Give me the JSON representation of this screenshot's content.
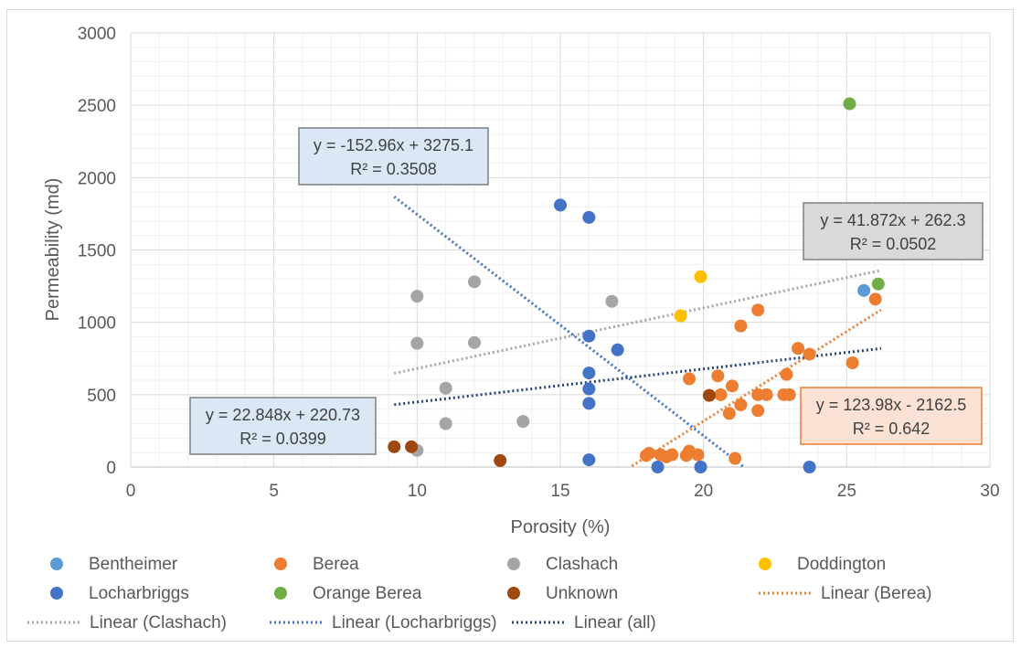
{
  "chart_data": {
    "type": "scatter",
    "title": "",
    "xlabel": "Porosity (%)",
    "ylabel": "Permeability (md)",
    "xlim": [
      0,
      30
    ],
    "ylim": [
      0,
      3000
    ],
    "xticks": [
      "0",
      "5",
      "10",
      "15",
      "20",
      "25",
      "30"
    ],
    "yticks": [
      "0",
      "500",
      "1000",
      "1500",
      "2000",
      "2500",
      "3000"
    ],
    "grid": true,
    "legend_position": "bottom",
    "series": [
      {
        "name": "Bentheimer",
        "color": "#5b9bd5",
        "points": [
          [
            25.6,
            1220
          ]
        ]
      },
      {
        "name": "Berea",
        "color": "#ed7d31",
        "points": [
          [
            18.0,
            80
          ],
          [
            18.1,
            95
          ],
          [
            18.5,
            85
          ],
          [
            18.7,
            70
          ],
          [
            18.9,
            85
          ],
          [
            19.4,
            80
          ],
          [
            19.5,
            110
          ],
          [
            19.8,
            85
          ],
          [
            19.5,
            610
          ],
          [
            20.5,
            630
          ],
          [
            20.6,
            500
          ],
          [
            20.9,
            370
          ],
          [
            21.0,
            560
          ],
          [
            21.1,
            60
          ],
          [
            21.3,
            430
          ],
          [
            21.3,
            975
          ],
          [
            21.9,
            500
          ],
          [
            21.9,
            390
          ],
          [
            21.9,
            1085
          ],
          [
            22.2,
            500
          ],
          [
            22.8,
            500
          ],
          [
            22.9,
            640
          ],
          [
            23.0,
            500
          ],
          [
            23.3,
            820
          ],
          [
            23.7,
            780
          ],
          [
            25.2,
            720
          ],
          [
            26.0,
            1160
          ]
        ]
      },
      {
        "name": "Clashach",
        "color": "#a5a5a5",
        "points": [
          [
            10.0,
            1180
          ],
          [
            10.0,
            855
          ],
          [
            10.0,
            115
          ],
          [
            11.0,
            545
          ],
          [
            11.0,
            300
          ],
          [
            12.0,
            1280
          ],
          [
            12.0,
            860
          ],
          [
            13.7,
            315
          ],
          [
            16.8,
            1145
          ]
        ]
      },
      {
        "name": "Doddington",
        "color": "#ffc000",
        "points": [
          [
            19.2,
            1045
          ],
          [
            19.9,
            1315
          ]
        ]
      },
      {
        "name": "Locharbriggs",
        "color": "#4472c4",
        "points": [
          [
            15.0,
            1810
          ],
          [
            16.0,
            1725
          ],
          [
            16.0,
            905
          ],
          [
            16.0,
            650
          ],
          [
            16.0,
            540
          ],
          [
            16.0,
            440
          ],
          [
            16.0,
            50
          ],
          [
            17.0,
            810
          ],
          [
            18.4,
            0
          ],
          [
            19.9,
            0
          ],
          [
            23.7,
            0
          ]
        ]
      },
      {
        "name": "Orange Berea",
        "color": "#70ad47",
        "points": [
          [
            25.1,
            2510
          ],
          [
            26.1,
            1265
          ]
        ]
      },
      {
        "name": "Unknown",
        "color": "#9e480e",
        "points": [
          [
            9.2,
            140
          ],
          [
            9.8,
            140
          ],
          [
            12.9,
            45
          ],
          [
            20.2,
            495
          ]
        ]
      }
    ],
    "trendlines": [
      {
        "name": "Linear (Berea)",
        "color": "#ed7d31",
        "slope": 123.98,
        "intercept": -2162.5,
        "x_range": [
          17.5,
          26.2
        ],
        "equation": "y = 123.98x - 2162.5",
        "r2": "R² = 0.642"
      },
      {
        "name": "Linear (Clashach)",
        "color": "#a5a5a5",
        "slope": 41.872,
        "intercept": 262.3,
        "x_range": [
          9.2,
          26.2
        ],
        "equation": "y = 41.872x + 262.3",
        "r2": "R² = 0.0502"
      },
      {
        "name": "Linear (Locharbriggs)",
        "color": "#4472c4",
        "slope": -152.96,
        "intercept": 3275.1,
        "x_range": [
          9.2,
          21.41
        ],
        "equation": "y = -152.96x + 3275.1",
        "r2": "R² = 0.3508"
      },
      {
        "name": "Linear (all)",
        "color": "#264478",
        "slope": 22.848,
        "intercept": 220.73,
        "x_range": [
          9.2,
          26.2
        ],
        "equation": "y = 22.848x + 220.73",
        "r2": "R² = 0.0399"
      }
    ],
    "legend": [
      {
        "label": "Bentheimer",
        "kind": "marker",
        "color": "#5b9bd5"
      },
      {
        "label": "Berea",
        "kind": "marker",
        "color": "#ed7d31"
      },
      {
        "label": "Clashach",
        "kind": "marker",
        "color": "#a5a5a5"
      },
      {
        "label": "Doddington",
        "kind": "marker",
        "color": "#ffc000"
      },
      {
        "label": "Locharbriggs",
        "kind": "marker",
        "color": "#4472c4"
      },
      {
        "label": "Orange Berea",
        "kind": "marker",
        "color": "#70ad47"
      },
      {
        "label": "Unknown",
        "kind": "marker",
        "color": "#9e480e"
      },
      {
        "label": "Linear (Berea)",
        "kind": "line",
        "color": "#ed7d31"
      },
      {
        "label": "Linear (Clashach)",
        "kind": "line",
        "color": "#a5a5a5"
      },
      {
        "label": "Linear (Locharbriggs)",
        "kind": "line",
        "color": "#4472c4"
      },
      {
        "label": "Linear (all)",
        "kind": "line",
        "color": "#264478"
      }
    ]
  }
}
